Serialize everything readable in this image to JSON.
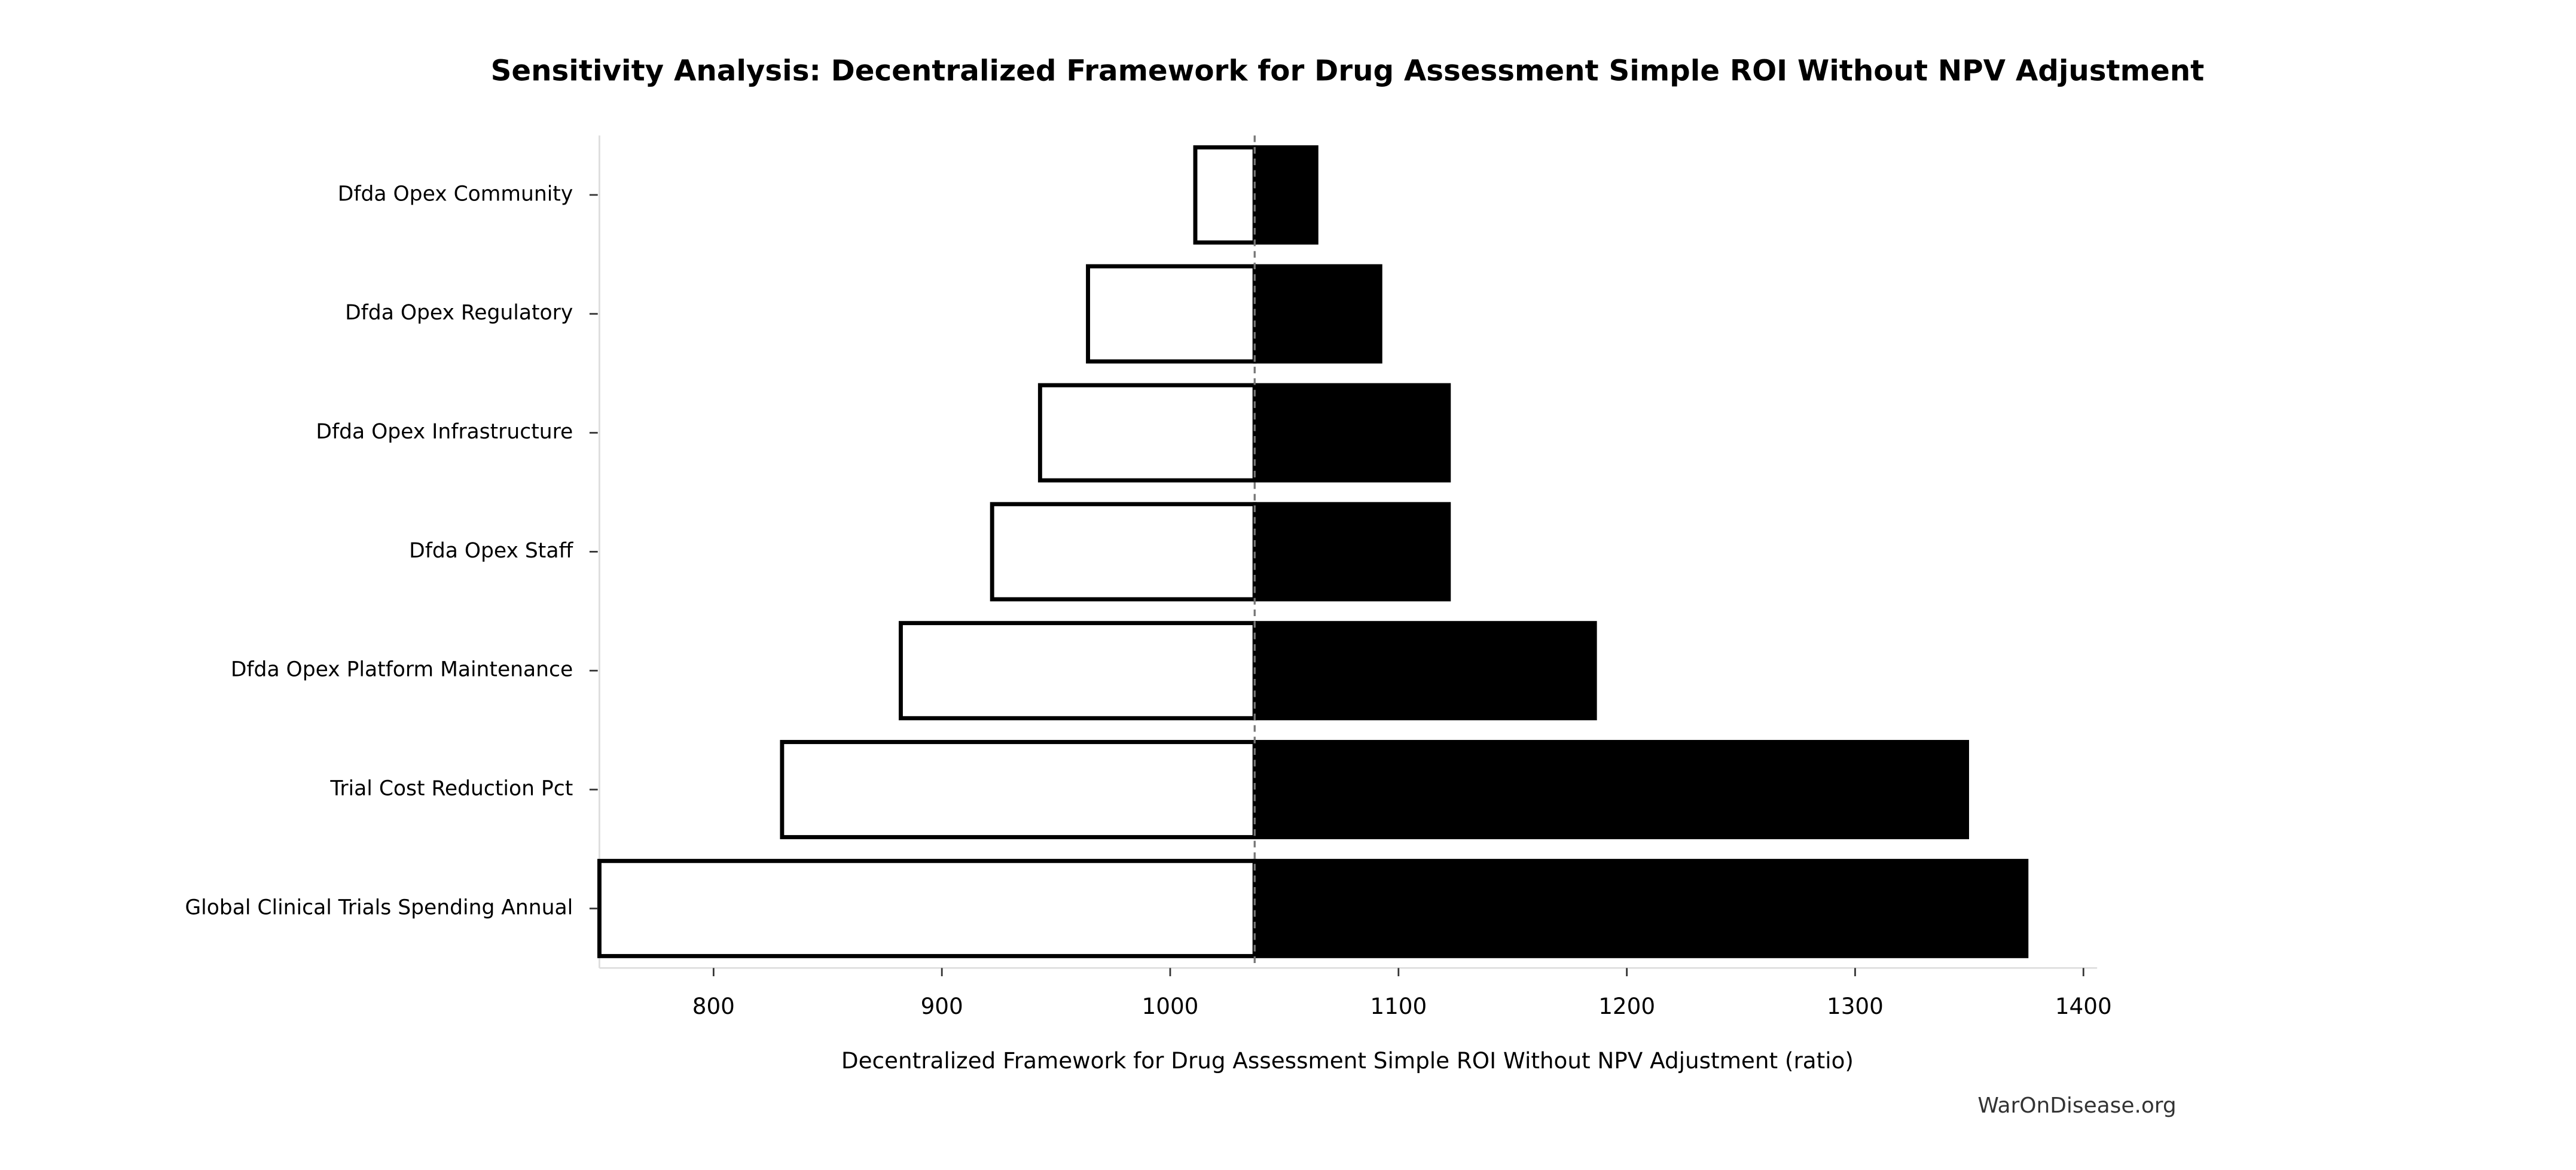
{
  "chart_data": {
    "type": "tornado",
    "title": "Sensitivity Analysis: Decentralized Framework for Drug Assessment Simple ROI Without NPV Adjustment",
    "xlabel": "Decentralized Framework for Drug Assessment Simple ROI Without NPV Adjustment (ratio)",
    "watermark": "WarOnDisease.org",
    "categories": [
      "Dfda Opex Community",
      "Dfda Opex Regulatory",
      "Dfda Opex Infrastructure",
      "Dfda Opex Staff",
      "Dfda Opex Platform Maintenance",
      "Trial Cost Reduction Pct",
      "Global Clinical Trials Spending Annual"
    ],
    "baseline": 1037,
    "series": [
      {
        "color": "#ffffff",
        "edgecolor": "#000000",
        "values": [
          1011,
          964,
          943,
          922,
          882,
          830,
          750
        ]
      },
      {
        "color": "#000000",
        "edgecolor": "#000000",
        "values": [
          1064,
          1092,
          1122,
          1122,
          1186,
          1349,
          1375
        ]
      }
    ],
    "xlim": [
      750,
      1406
    ],
    "xticks": [
      800,
      900,
      1000,
      1100,
      1200,
      1300,
      1400
    ]
  }
}
